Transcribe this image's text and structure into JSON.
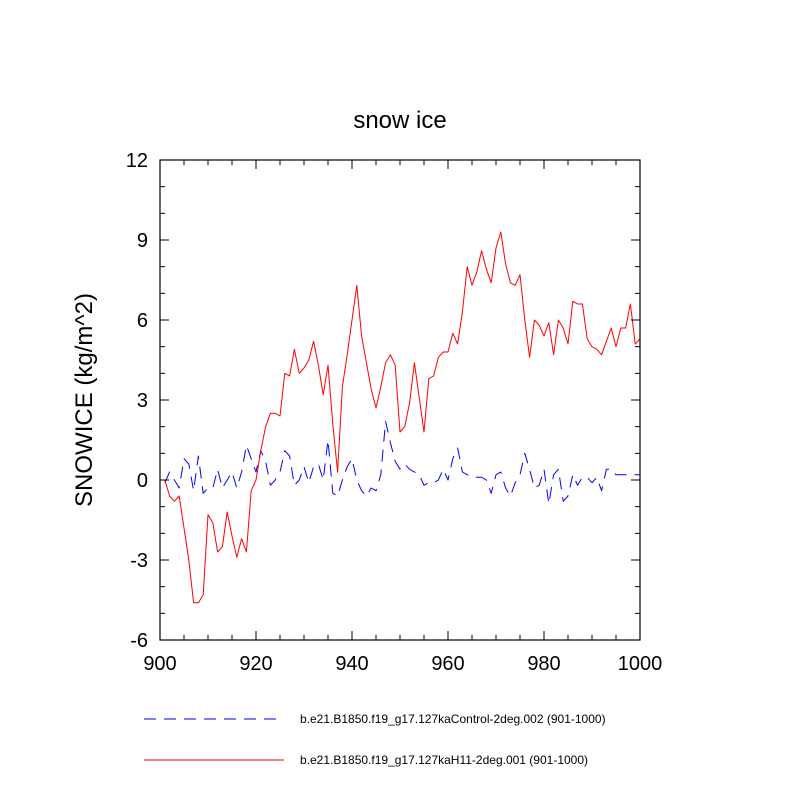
{
  "chart_data": {
    "type": "line",
    "title": "snow ice",
    "xlabel": "",
    "ylabel": "SNOWICE  (kg/m^2)",
    "xlim": [
      900,
      1000
    ],
    "ylim": [
      -6,
      12
    ],
    "xticks": [
      900,
      920,
      940,
      960,
      980,
      1000
    ],
    "yticks": [
      -6,
      -3,
      0,
      3,
      6,
      9,
      12
    ],
    "xtick_labels": [
      "900",
      "920",
      "940",
      "960",
      "980",
      "1000"
    ],
    "ytick_labels": [
      "-6",
      "-3",
      "0",
      "3",
      "6",
      "9",
      "12"
    ],
    "grid": false,
    "legend_position": "bottom",
    "series": [
      {
        "name": "b.e21.B1850.f19_g17.127kaControl-2deg.002 (901-1000)",
        "color": "#0000ff",
        "style": "dashed",
        "x": [
          901,
          902,
          903,
          904,
          905,
          906,
          907,
          908,
          909,
          910,
          911,
          912,
          913,
          914,
          915,
          916,
          917,
          918,
          919,
          920,
          921,
          922,
          923,
          924,
          925,
          926,
          927,
          928,
          929,
          930,
          931,
          932,
          933,
          934,
          935,
          936,
          937,
          938,
          939,
          940,
          941,
          942,
          943,
          944,
          945,
          946,
          947,
          948,
          949,
          950,
          951,
          952,
          953,
          954,
          955,
          956,
          957,
          958,
          959,
          960,
          961,
          962,
          963,
          964,
          965,
          966,
          967,
          968,
          969,
          970,
          971,
          972,
          973,
          974,
          975,
          976,
          977,
          978,
          979,
          980,
          981,
          982,
          983,
          984,
          985,
          986,
          987,
          988,
          989,
          990,
          991,
          992,
          993,
          994,
          995,
          996,
          997,
          998,
          999,
          1000
        ],
        "y": [
          -0.1,
          0.3,
          0.0,
          -0.3,
          0.8,
          0.6,
          -0.4,
          0.9,
          -0.5,
          -0.3,
          -0.3,
          0.4,
          -0.3,
          0.0,
          0.3,
          -0.3,
          0.3,
          1.3,
          0.8,
          0.3,
          1.1,
          0.7,
          -0.2,
          0.0,
          0.3,
          1.1,
          0.9,
          -0.2,
          0.0,
          0.5,
          -0.1,
          0.5,
          0.6,
          0.0,
          1.5,
          -0.5,
          -0.6,
          0.0,
          0.5,
          0.8,
          0.0,
          -0.4,
          -0.6,
          -0.3,
          -0.4,
          0.2,
          2.2,
          1.4,
          0.7,
          0.4,
          0.6,
          0.4,
          0.3,
          0.2,
          -0.2,
          -0.1,
          -0.1,
          0.0,
          0.4,
          0.0,
          0.8,
          1.2,
          0.3,
          0.2,
          0.1,
          0.1,
          0.1,
          0.0,
          -0.5,
          0.2,
          0.3,
          -0.3,
          -0.6,
          -0.1,
          0.2,
          1.0,
          0.4,
          -0.3,
          -0.2,
          0.4,
          -0.9,
          0.2,
          0.4,
          -0.8,
          -0.6,
          0.2,
          -0.2,
          0.1,
          0.1,
          -0.1,
          0.1,
          -0.4,
          0.4,
          0.4,
          0.2,
          0.2,
          0.2,
          0.2,
          0.2,
          0.2
        ]
      },
      {
        "name": "b.e21.B1850.f19_g17.127kaH11-2deg.001 (901-1000)",
        "color": "#ff0000",
        "style": "solid",
        "x": [
          901,
          902,
          903,
          904,
          905,
          906,
          907,
          908,
          909,
          910,
          911,
          912,
          913,
          914,
          915,
          916,
          917,
          918,
          919,
          920,
          921,
          922,
          923,
          924,
          925,
          926,
          927,
          928,
          929,
          930,
          931,
          932,
          933,
          934,
          935,
          936,
          937,
          938,
          939,
          940,
          941,
          942,
          943,
          944,
          945,
          946,
          947,
          948,
          949,
          950,
          951,
          952,
          953,
          954,
          955,
          956,
          957,
          958,
          959,
          960,
          961,
          962,
          963,
          964,
          965,
          966,
          967,
          968,
          969,
          970,
          971,
          972,
          973,
          974,
          975,
          976,
          977,
          978,
          979,
          980,
          981,
          982,
          983,
          984,
          985,
          986,
          987,
          988,
          989,
          990,
          991,
          992,
          993,
          994,
          995,
          996,
          997,
          998,
          999,
          1000
        ],
        "y": [
          0.0,
          -0.6,
          -0.8,
          -0.6,
          -1.8,
          -3.0,
          -4.6,
          -4.6,
          -4.3,
          -1.3,
          -1.6,
          -2.7,
          -2.5,
          -1.2,
          -2.1,
          -2.9,
          -2.2,
          -2.7,
          -0.4,
          0.0,
          1.1,
          2.0,
          2.5,
          2.5,
          2.4,
          4.0,
          3.9,
          4.9,
          4.0,
          4.2,
          4.5,
          5.2,
          4.3,
          3.2,
          4.3,
          2.1,
          0.3,
          3.5,
          4.7,
          6.0,
          7.3,
          5.4,
          4.4,
          3.4,
          2.7,
          3.5,
          4.4,
          4.7,
          4.3,
          1.8,
          2.0,
          2.9,
          4.4,
          3.1,
          1.8,
          3.8,
          3.9,
          4.6,
          4.8,
          4.8,
          5.5,
          5.1,
          6.3,
          8.0,
          7.3,
          7.8,
          8.6,
          7.9,
          7.4,
          8.7,
          9.3,
          8.1,
          7.4,
          7.3,
          7.7,
          6.0,
          4.6,
          6.0,
          5.8,
          5.4,
          5.9,
          4.7,
          6.0,
          5.7,
          5.1,
          6.7,
          6.6,
          6.6,
          5.3,
          5.0,
          4.9,
          4.7,
          5.2,
          5.7,
          5.0,
          5.7,
          5.7,
          6.6,
          5.1,
          5.3
        ]
      }
    ]
  }
}
